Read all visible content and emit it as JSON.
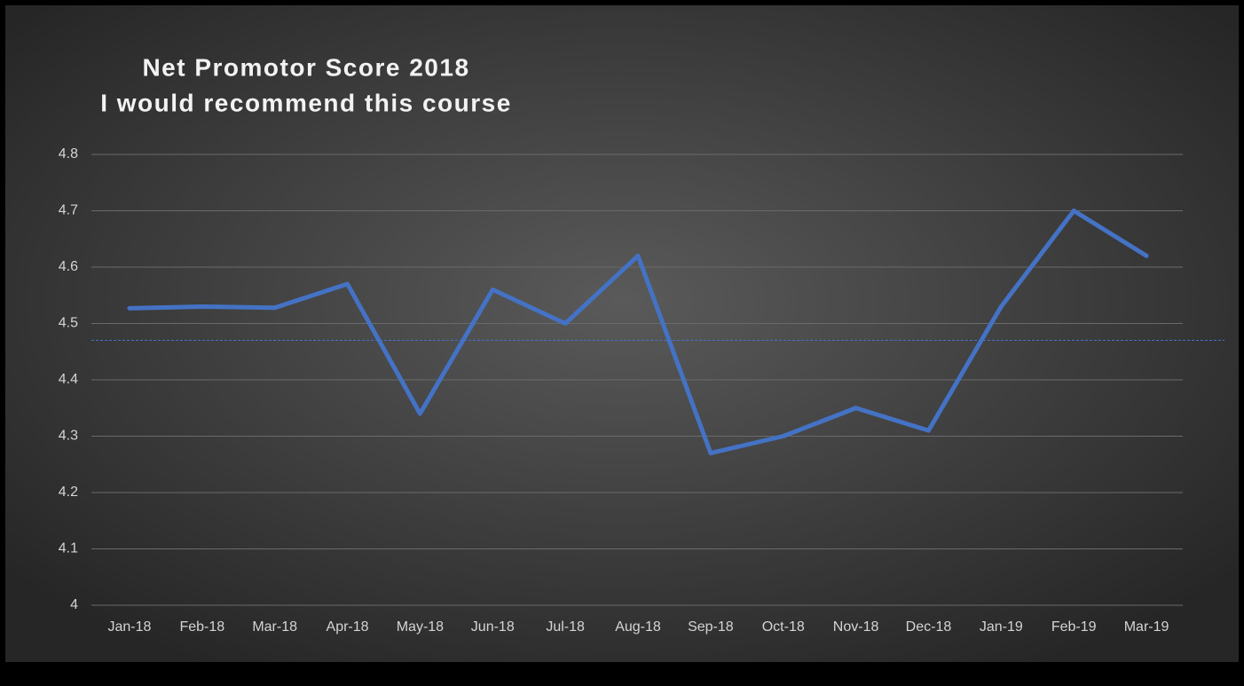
{
  "chart_data": {
    "type": "line",
    "title": [
      "Net Promotor Score 2018",
      "I would recommend this course"
    ],
    "categories": [
      "Jan-18",
      "Feb-18",
      "Mar-18",
      "Apr-18",
      "May-18",
      "Jun-18",
      "Jul-18",
      "Aug-18",
      "Sep-18",
      "Oct-18",
      "Nov-18",
      "Dec-18",
      "Jan-19",
      "Feb-19",
      "Mar-19"
    ],
    "values": [
      4.527,
      4.53,
      4.528,
      4.57,
      4.34,
      4.56,
      4.5,
      4.62,
      4.27,
      4.3,
      4.35,
      4.31,
      4.53,
      4.7,
      4.62
    ],
    "color": "#4472c4",
    "reference_line": {
      "value": 4.47,
      "color": "#4472c4"
    },
    "ylim": [
      4,
      4.8
    ],
    "yticks": [
      4,
      4.1,
      4.2,
      4.3,
      4.4,
      4.5,
      4.6,
      4.7,
      4.8
    ],
    "grid": true
  }
}
